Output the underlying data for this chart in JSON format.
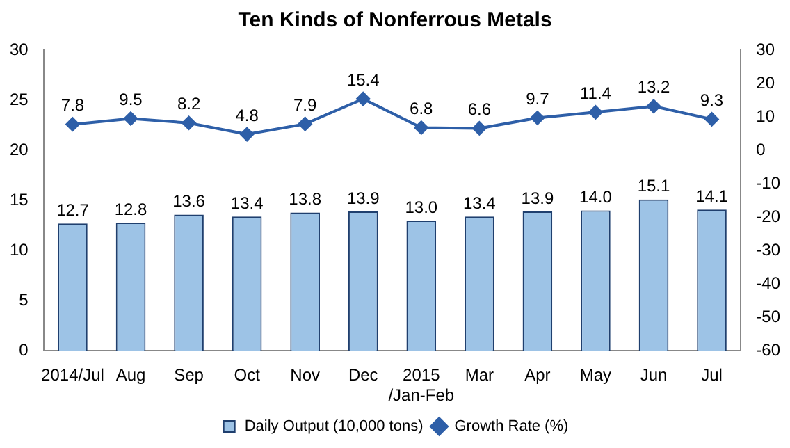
{
  "chart_data": {
    "type": "bar",
    "title": "Ten Kinds of Nonferrous Metals",
    "categories": [
      "2014/Jul",
      "Aug",
      "Sep",
      "Oct",
      "Nov",
      "Dec",
      "2015 /Jan-Feb",
      "Mar",
      "Apr",
      "May",
      "Jun",
      "Jul"
    ],
    "series": [
      {
        "name": "Daily Output (10,000 tons)",
        "color": "#9dc3e6",
        "values": [
          12.7,
          12.8,
          13.6,
          13.4,
          13.8,
          13.9,
          13.0,
          13.4,
          13.9,
          14.0,
          15.1,
          14.1
        ],
        "value_labels": [
          "12.7",
          "12.8",
          "13.6",
          "13.4",
          "13.8",
          "13.9",
          "13.0",
          "13.4",
          "13.9",
          "14.0",
          "15.1",
          "14.1"
        ]
      },
      {
        "name": "Growth Rate (%)",
        "type": "line",
        "axis": "y2",
        "color": "#2e5fa8",
        "marker": "diamond",
        "values": [
          7.8,
          9.5,
          8.2,
          4.8,
          7.9,
          15.4,
          6.8,
          6.6,
          9.7,
          11.4,
          13.2,
          9.3
        ]
      }
    ],
    "ylim": [
      0,
      30
    ],
    "yticks": [
      0,
      5,
      10,
      15,
      20,
      25,
      30
    ],
    "y2lim": [
      -60,
      30
    ],
    "y2ticks": [
      -60,
      -50,
      -40,
      -30,
      -20,
      -10,
      0,
      10,
      20,
      30
    ],
    "data_labels": true,
    "grid": false,
    "legend": "bottom"
  }
}
